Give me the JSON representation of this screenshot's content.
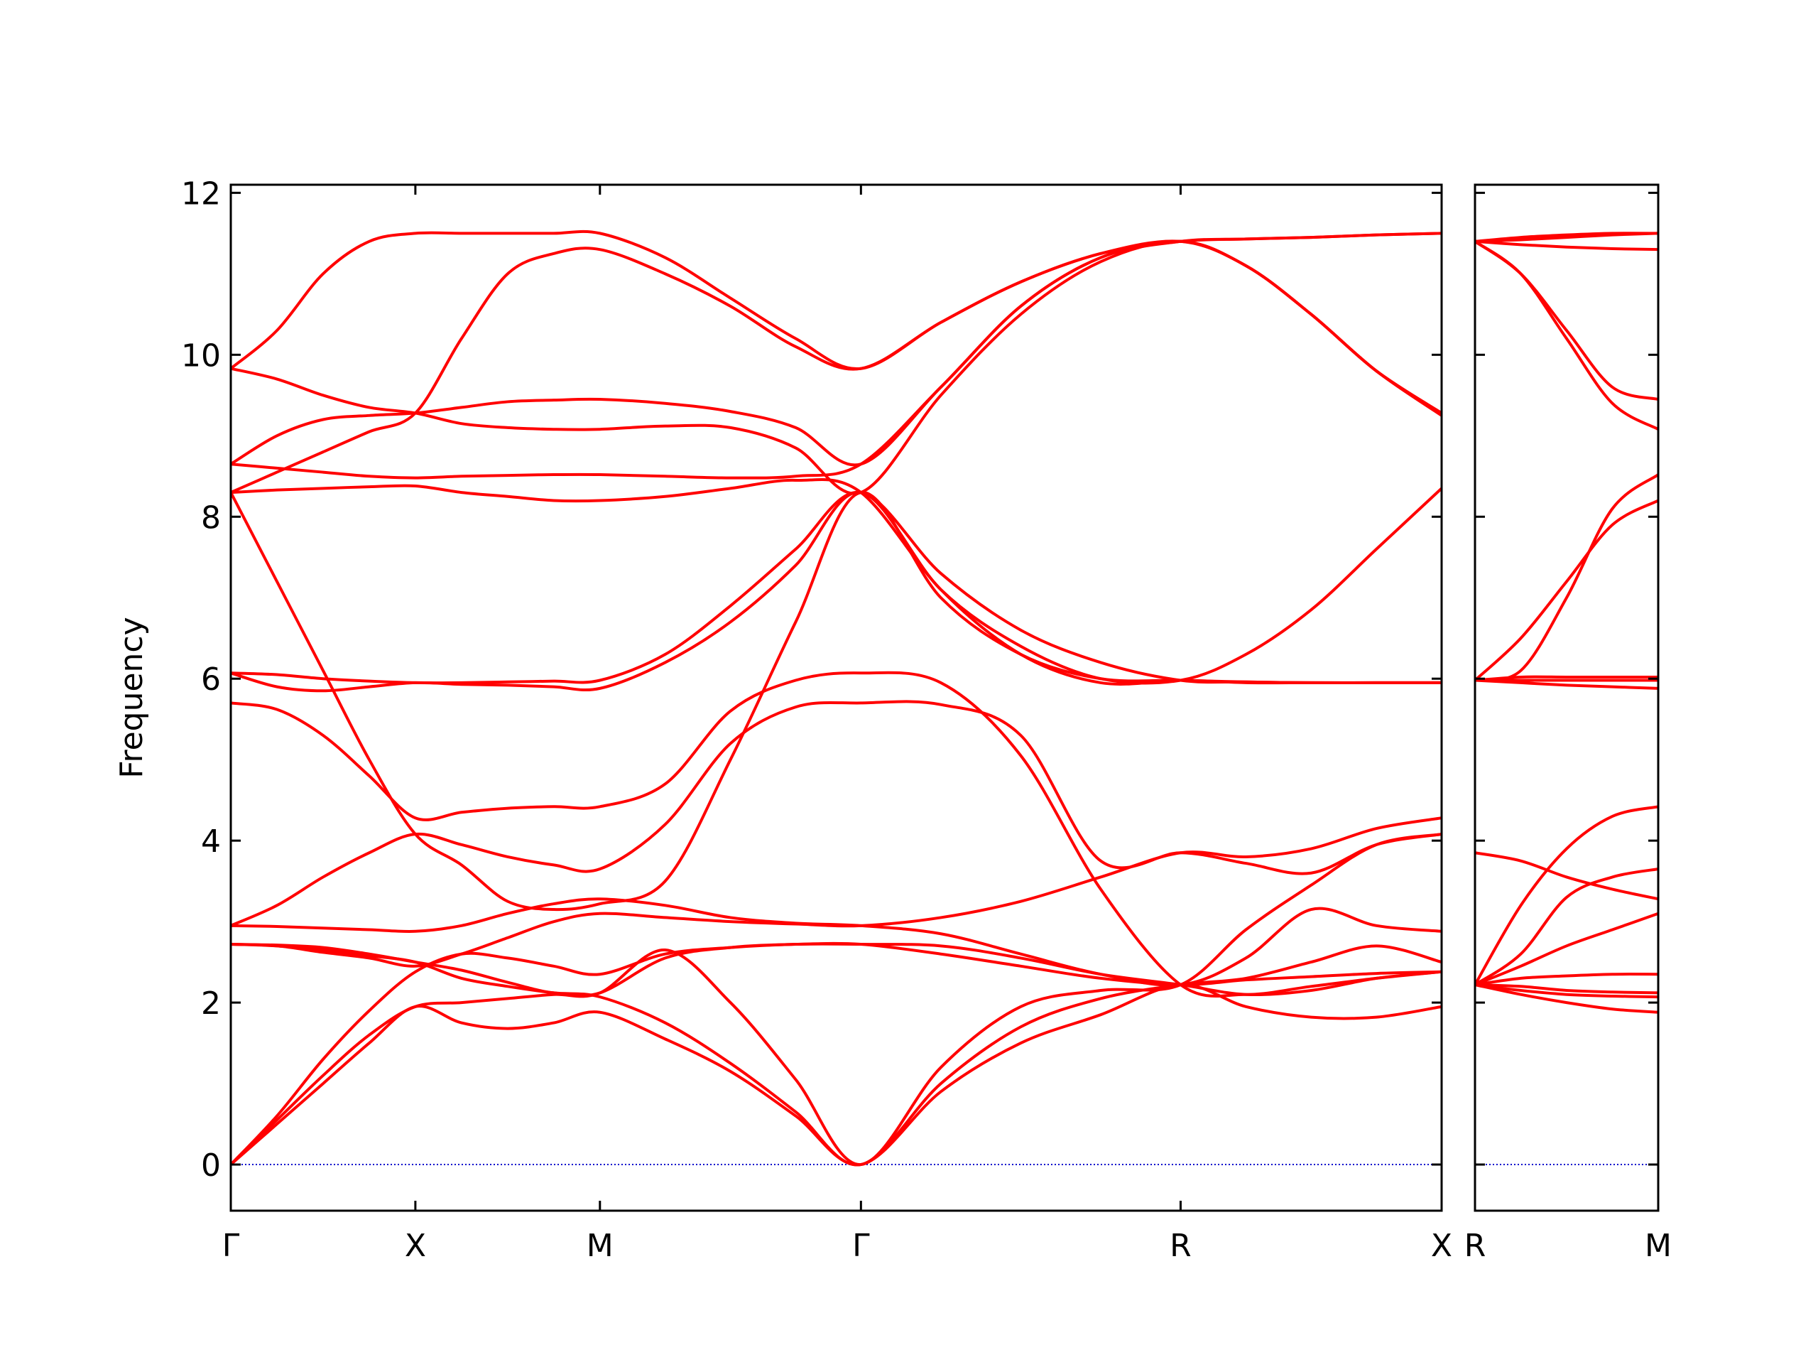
{
  "chart_data": [
    {
      "type": "line",
      "ylabel": "Frequency",
      "color": "#ff0000",
      "hline": {
        "y": 0,
        "color": "#0000cc",
        "dash": "dotted"
      },
      "x": [
        0,
        0.125,
        0.25,
        0.375,
        0.5,
        0.625,
        0.75,
        0.875,
        1.0,
        1.1768,
        1.3536,
        1.5303,
        1.7071,
        1.9236,
        2.1401,
        2.3566,
        2.5731,
        2.75,
        2.9267,
        3.1035,
        3.2802
      ],
      "xlim": [
        0,
        3.2802
      ],
      "xticks": [
        {
          "value": 0,
          "label": "Γ"
        },
        {
          "value": 0.5,
          "label": "X"
        },
        {
          "value": 1.0,
          "label": "M"
        },
        {
          "value": 1.7071,
          "label": "Γ"
        },
        {
          "value": 2.5731,
          "label": "R"
        },
        {
          "value": 3.2802,
          "label": "X"
        }
      ],
      "ylim": [
        -0.57,
        12.1
      ],
      "yticks": [
        0,
        2,
        4,
        6,
        8,
        10,
        12
      ],
      "series": [
        {
          "values": [
            0,
            0.5,
            1.0,
            1.5,
            1.95,
            1.75,
            1.68,
            1.75,
            1.88,
            1.55,
            1.15,
            0.6,
            0,
            0.9,
            1.5,
            1.85,
            2.22,
            1.95,
            1.82,
            1.82,
            1.95
          ]
        },
        {
          "values": [
            0,
            0.55,
            1.1,
            1.6,
            1.95,
            2.0,
            2.05,
            2.1,
            2.12,
            2.65,
            2.0,
            1.05,
            0,
            1.2,
            1.95,
            2.15,
            2.22,
            2.9,
            3.45,
            3.95,
            4.08
          ]
        },
        {
          "values": [
            0,
            0.6,
            1.3,
            1.9,
            2.38,
            2.6,
            2.55,
            2.45,
            2.35,
            2.6,
            2.68,
            2.72,
            2.72,
            2.6,
            2.45,
            2.3,
            2.22,
            2.28,
            2.32,
            2.36,
            2.38
          ]
        },
        {
          "values": [
            2.72,
            2.7,
            2.65,
            2.58,
            2.5,
            2.3,
            2.2,
            2.12,
            2.07,
            1.75,
            1.25,
            0.65,
            0,
            1.0,
            1.7,
            2.05,
            2.22,
            2.3,
            2.5,
            2.7,
            2.5
          ]
        },
        {
          "values": [
            2.72,
            2.7,
            2.62,
            2.55,
            2.45,
            2.6,
            2.8,
            3.0,
            3.1,
            3.05,
            3.0,
            2.97,
            2.95,
            3.05,
            3.25,
            3.55,
            3.85,
            3.8,
            3.9,
            4.15,
            4.28
          ]
        },
        {
          "values": [
            2.72,
            2.71,
            2.68,
            2.6,
            2.5,
            2.4,
            2.25,
            2.12,
            2.12,
            2.55,
            2.68,
            2.72,
            2.72,
            2.7,
            2.55,
            2.35,
            2.22,
            2.1,
            2.15,
            2.3,
            2.38
          ]
        },
        {
          "values": [
            2.95,
            2.94,
            2.92,
            2.9,
            2.88,
            2.95,
            3.1,
            3.22,
            3.28,
            3.2,
            3.05,
            2.98,
            2.95,
            2.85,
            2.6,
            2.35,
            2.22,
            2.55,
            3.15,
            2.95,
            2.88
          ]
        },
        {
          "values": [
            2.95,
            3.2,
            3.55,
            3.85,
            4.08,
            3.95,
            3.8,
            3.7,
            3.65,
            4.2,
            5.2,
            5.65,
            5.7,
            5.68,
            5.3,
            3.75,
            3.85,
            3.72,
            3.6,
            3.95,
            4.08
          ]
        },
        {
          "values": [
            5.7,
            5.62,
            5.3,
            4.8,
            4.28,
            4.35,
            4.4,
            4.42,
            4.42,
            4.7,
            5.6,
            5.98,
            6.07,
            5.95,
            5.05,
            3.4,
            2.22,
            2.1,
            2.2,
            2.3,
            2.38
          ]
        },
        {
          "values": [
            6.07,
            6.05,
            6.0,
            5.97,
            5.95,
            5.95,
            5.96,
            5.97,
            5.98,
            6.3,
            6.9,
            7.6,
            8.3,
            7.3,
            6.6,
            6.2,
            5.98,
            5.96,
            5.95,
            5.95,
            5.95
          ]
        },
        {
          "values": [
            6.07,
            5.9,
            5.85,
            5.9,
            5.95,
            5.93,
            5.92,
            5.9,
            5.88,
            6.2,
            6.7,
            7.4,
            8.3,
            7.1,
            6.4,
            6.0,
            5.98,
            6.3,
            6.85,
            7.6,
            8.35
          ]
        },
        {
          "values": [
            8.3,
            7.2,
            6.1,
            5.0,
            4.08,
            3.7,
            3.25,
            3.15,
            3.22,
            3.5,
            5.0,
            6.7,
            8.3,
            7.0,
            6.3,
            6.0,
            5.98,
            5.96,
            5.95,
            5.95,
            5.95
          ]
        },
        {
          "values": [
            8.3,
            8.33,
            8.35,
            8.37,
            8.38,
            8.3,
            8.25,
            8.2,
            8.2,
            8.25,
            8.35,
            8.45,
            8.3,
            7.1,
            6.3,
            5.95,
            5.98,
            5.95,
            5.95,
            5.95,
            5.95
          ]
        },
        {
          "values": [
            8.65,
            8.6,
            8.55,
            8.5,
            8.48,
            8.5,
            8.51,
            8.52,
            8.52,
            8.5,
            8.48,
            8.5,
            8.65,
            9.6,
            10.6,
            11.2,
            11.4,
            11.1,
            10.5,
            9.8,
            9.28
          ]
        },
        {
          "values": [
            8.3,
            8.55,
            8.8,
            9.05,
            9.28,
            10.2,
            11.0,
            11.25,
            11.3,
            11.0,
            10.6,
            10.1,
            9.83,
            10.4,
            10.9,
            11.25,
            11.4,
            11.1,
            10.5,
            9.8,
            9.25
          ]
        },
        {
          "values": [
            8.65,
            9.0,
            9.2,
            9.25,
            9.28,
            9.35,
            9.42,
            9.44,
            9.45,
            9.4,
            9.3,
            9.1,
            8.65,
            9.6,
            10.6,
            11.2,
            11.4,
            11.43,
            11.45,
            11.48,
            11.5
          ]
        },
        {
          "values": [
            9.83,
            9.7,
            9.5,
            9.35,
            9.28,
            9.15,
            9.1,
            9.08,
            9.08,
            9.12,
            9.1,
            8.85,
            8.3,
            9.5,
            10.5,
            11.15,
            11.4,
            11.1,
            10.5,
            9.8,
            9.28
          ]
        },
        {
          "values": [
            9.83,
            10.3,
            11.0,
            11.4,
            11.5,
            11.5,
            11.5,
            11.5,
            11.5,
            11.2,
            10.7,
            10.2,
            9.83,
            10.4,
            10.9,
            11.25,
            11.4,
            11.43,
            11.45,
            11.48,
            11.5
          ]
        }
      ]
    },
    {
      "type": "line",
      "color": "#ff0000",
      "sharey": true,
      "hline": {
        "y": 0,
        "color": "#0000cc",
        "dash": "dotted"
      },
      "x": [
        0,
        0.125,
        0.25,
        0.375,
        0.5
      ],
      "xlim": [
        0,
        0.5
      ],
      "xticks": [
        {
          "value": 0,
          "label": "R"
        },
        {
          "value": 0.5,
          "label": "M"
        }
      ],
      "ylim": [
        -0.57,
        12.1
      ],
      "series": [
        {
          "values": [
            2.22,
            2.1,
            2.0,
            1.92,
            1.88
          ]
        },
        {
          "values": [
            2.22,
            2.15,
            2.1,
            2.08,
            2.07
          ]
        },
        {
          "values": [
            2.22,
            2.2,
            2.15,
            2.13,
            2.12
          ]
        },
        {
          "values": [
            2.22,
            2.3,
            2.33,
            2.35,
            2.35
          ]
        },
        {
          "values": [
            2.22,
            2.45,
            2.7,
            2.9,
            3.1
          ]
        },
        {
          "values": [
            2.22,
            2.6,
            3.3,
            3.55,
            3.65
          ]
        },
        {
          "values": [
            3.85,
            3.75,
            3.55,
            3.4,
            3.28
          ]
        },
        {
          "values": [
            2.22,
            3.2,
            3.9,
            4.3,
            4.42
          ]
        },
        {
          "values": [
            5.98,
            5.95,
            5.92,
            5.9,
            5.88
          ]
        },
        {
          "values": [
            5.98,
            5.98,
            5.98,
            5.98,
            5.98
          ]
        },
        {
          "values": [
            5.98,
            6.02,
            6.02,
            6.02,
            6.02
          ]
        },
        {
          "values": [
            5.98,
            6.5,
            7.2,
            7.9,
            8.2
          ]
        },
        {
          "values": [
            5.98,
            6.1,
            7.0,
            8.1,
            8.52
          ]
        },
        {
          "values": [
            11.4,
            11.0,
            10.2,
            9.4,
            9.08
          ]
        },
        {
          "values": [
            11.4,
            11.0,
            10.3,
            9.6,
            9.45
          ]
        },
        {
          "values": [
            11.4,
            11.36,
            11.33,
            11.31,
            11.3
          ]
        },
        {
          "values": [
            11.4,
            11.42,
            11.45,
            11.48,
            11.5
          ]
        },
        {
          "values": [
            11.4,
            11.45,
            11.48,
            11.5,
            11.5
          ]
        }
      ]
    }
  ]
}
